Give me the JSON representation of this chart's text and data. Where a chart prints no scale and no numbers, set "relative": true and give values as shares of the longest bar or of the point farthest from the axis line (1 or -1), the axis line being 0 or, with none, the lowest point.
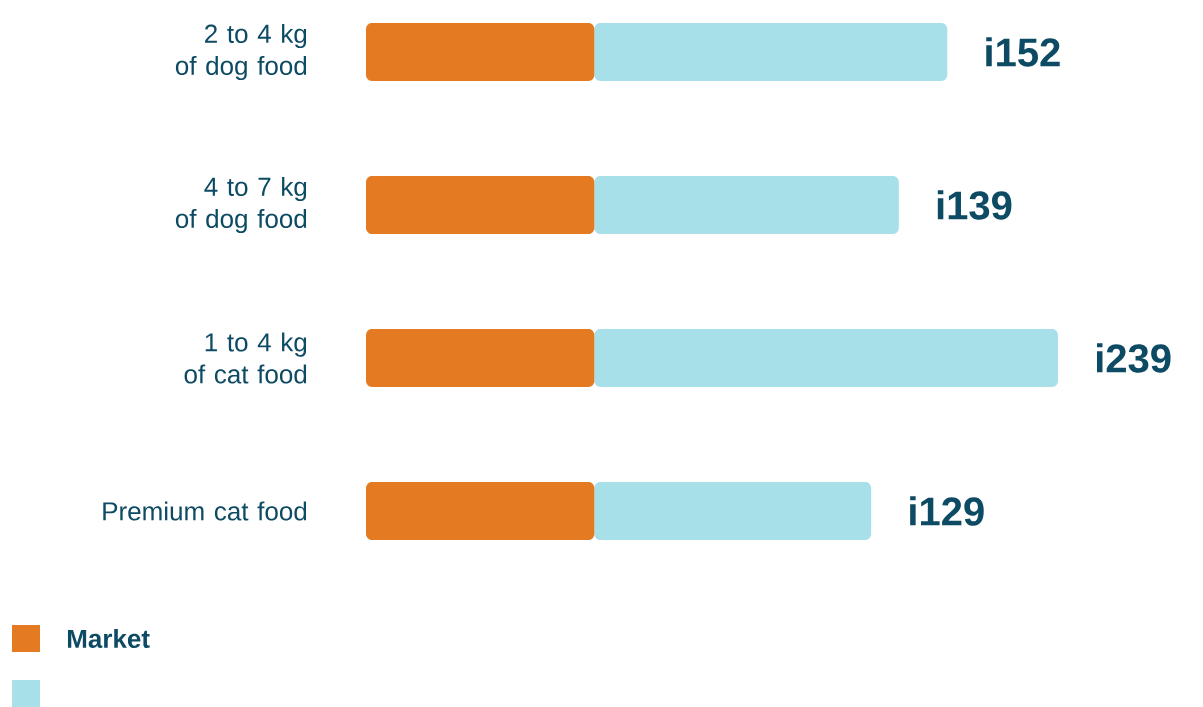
{
  "chart_data": {
    "type": "bar",
    "orientation": "horizontal",
    "stacked": true,
    "legend": "bottom left",
    "relative": true,
    "categories": [
      "2 to 4 kg of dog food",
      "4 to 7 kg of dog food",
      "1 to 4 kg of cat food",
      "Premium cat food"
    ],
    "series": [
      {
        "name": "Market",
        "color": "#e47b22",
        "values": [
          0.33,
          0.33,
          0.33,
          0.33
        ]
      },
      {
        "color": "#a8e0ea",
        "values": [
          0.51,
          0.44,
          0.67,
          0.4
        ]
      }
    ],
    "totals": [
      "i152",
      "i139",
      "i239",
      "i129"
    ]
  }
}
